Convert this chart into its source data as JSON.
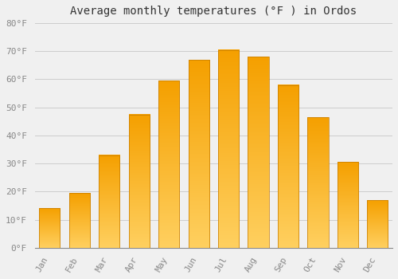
{
  "title": "Average monthly temperatures (°F ) in Ordos",
  "months": [
    "Jan",
    "Feb",
    "Mar",
    "Apr",
    "May",
    "Jun",
    "Jul",
    "Aug",
    "Sep",
    "Oct",
    "Nov",
    "Dec"
  ],
  "values": [
    14,
    19.5,
    33,
    47.5,
    59.5,
    67,
    70.5,
    68,
    58,
    46.5,
    30.5,
    17
  ],
  "bar_color": "#F5A800",
  "bar_edge_color": "#C47A00",
  "ylim": [
    0,
    80
  ],
  "yticks": [
    0,
    10,
    20,
    30,
    40,
    50,
    60,
    70,
    80
  ],
  "ytick_labels": [
    "0°F",
    "10°F",
    "20°F",
    "30°F",
    "40°F",
    "50°F",
    "60°F",
    "70°F",
    "80°F"
  ],
  "background_color": "#F0F0F0",
  "grid_color": "#CCCCCC",
  "title_fontsize": 10,
  "tick_fontsize": 8,
  "tick_color": "#888888",
  "font_family": "monospace"
}
